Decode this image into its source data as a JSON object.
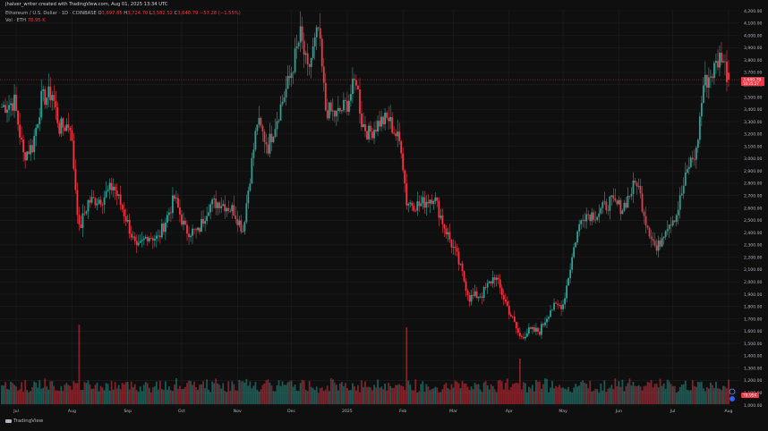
{
  "header": {
    "credit": "jhalver_writer created with TradingView.com, Aug 01, 2025 13:34 UTC",
    "symbol_title": "Ethereum / U.S. Dollar · 1D · COINBASE",
    "ohlc_label_o": "O",
    "ohlc_o": "3,697.85",
    "ohlc_label_h": "H",
    "ohlc_h": "3,724.70",
    "ohlc_label_l": "L",
    "ohlc_l": "3,582.52",
    "ohlc_label_c": "C",
    "ohlc_c": "3,640.79",
    "change": "−57.28 (−1.55%)",
    "vol_label": "Vol · ETH",
    "vol_value": "78.95 K"
  },
  "logo_text": "TradingView",
  "colors": {
    "up": "#26a69a",
    "down": "#f23645",
    "background": "#0f0f0f",
    "grid": "#1e1e1e",
    "text": "#b2b5be"
  },
  "chart_data": {
    "type": "candlestick",
    "x_ticks": [
      "Jul",
      "Aug",
      "Sep",
      "Oct",
      "Nov",
      "Dec",
      "2025",
      "Feb",
      "Mar",
      "Apr",
      "May",
      "Jun",
      "Jul",
      "Aug"
    ],
    "y_ticks": [
      "4,200.00",
      "4,100.00",
      "4,000.00",
      "3,900.00",
      "3,800.00",
      "3,700.00",
      "3,600.00",
      "3,500.00",
      "3,400.00",
      "3,300.00",
      "3,200.00",
      "3,100.00",
      "3,000.00",
      "2,900.00",
      "2,800.00",
      "2,700.00",
      "2,600.00",
      "2,500.00",
      "2,400.00",
      "2,300.00",
      "2,200.00",
      "2,100.00",
      "2,000.00",
      "1,900.00",
      "1,800.00",
      "1,700.00",
      "1,600.00",
      "1,500.00",
      "1,400.00",
      "1,300.00",
      "1,200.00",
      "1,100.00",
      "1,000.00"
    ],
    "ylim": [
      1000,
      4200
    ],
    "current_price_label": "3,640.79",
    "countdown_label": "10:25:27",
    "volume_label": "78.95K",
    "price_path": [
      [
        "2024-06-23",
        3420
      ],
      [
        "2024-06-30",
        3460
      ],
      [
        "2024-07-05",
        3030
      ],
      [
        "2024-07-10",
        3100
      ],
      [
        "2024-07-15",
        3480
      ],
      [
        "2024-07-21",
        3530
      ],
      [
        "2024-07-25",
        3250
      ],
      [
        "2024-07-31",
        3280
      ],
      [
        "2024-08-05",
        2420
      ],
      [
        "2024-08-10",
        2650
      ],
      [
        "2024-08-18",
        2680
      ],
      [
        "2024-08-24",
        2780
      ],
      [
        "2024-08-31",
        2520
      ],
      [
        "2024-09-06",
        2250
      ],
      [
        "2024-09-12",
        2380
      ],
      [
        "2024-09-18",
        2350
      ],
      [
        "2024-09-27",
        2680
      ],
      [
        "2024-10-03",
        2420
      ],
      [
        "2024-10-10",
        2400
      ],
      [
        "2024-10-16",
        2620
      ],
      [
        "2024-10-22",
        2650
      ],
      [
        "2024-10-30",
        2580
      ],
      [
        "2024-11-04",
        2420
      ],
      [
        "2024-11-12",
        3300
      ],
      [
        "2024-11-18",
        3100
      ],
      [
        "2024-11-24",
        3380
      ],
      [
        "2024-11-30",
        3650
      ],
      [
        "2024-12-06",
        4000
      ],
      [
        "2024-12-10",
        3700
      ],
      [
        "2024-12-16",
        4050
      ],
      [
        "2024-12-20",
        3400
      ],
      [
        "2024-12-26",
        3350
      ],
      [
        "2025-01-01",
        3450
      ],
      [
        "2025-01-06",
        3650
      ],
      [
        "2025-01-09",
        3300
      ],
      [
        "2025-01-13",
        3200
      ],
      [
        "2025-01-19",
        3300
      ],
      [
        "2025-01-24",
        3320
      ],
      [
        "2025-01-31",
        3100
      ],
      [
        "2025-02-03",
        2650
      ],
      [
        "2025-02-10",
        2620
      ],
      [
        "2025-02-18",
        2700
      ],
      [
        "2025-02-24",
        2450
      ],
      [
        "2025-03-03",
        2200
      ],
      [
        "2025-03-10",
        1870
      ],
      [
        "2025-03-17",
        1900
      ],
      [
        "2025-03-24",
        2050
      ],
      [
        "2025-03-31",
        1800
      ],
      [
        "2025-04-07",
        1550
      ],
      [
        "2025-04-12",
        1600
      ],
      [
        "2025-04-18",
        1600
      ],
      [
        "2025-04-24",
        1780
      ],
      [
        "2025-05-01",
        1820
      ],
      [
        "2025-05-08",
        2350
      ],
      [
        "2025-05-12",
        2550
      ],
      [
        "2025-05-20",
        2550
      ],
      [
        "2025-05-27",
        2650
      ],
      [
        "2025-06-03",
        2600
      ],
      [
        "2025-06-11",
        2820
      ],
      [
        "2025-06-16",
        2500
      ],
      [
        "2025-06-22",
        2250
      ],
      [
        "2025-06-27",
        2450
      ],
      [
        "2025-07-03",
        2550
      ],
      [
        "2025-07-10",
        2950
      ],
      [
        "2025-07-14",
        3050
      ],
      [
        "2025-07-18",
        3600
      ],
      [
        "2025-07-23",
        3700
      ],
      [
        "2025-07-28",
        3850
      ],
      [
        "2025-08-01",
        3640
      ]
    ],
    "volume_spikes": [
      [
        "2024-08-05",
        8.0
      ],
      [
        "2025-02-03",
        7.6
      ],
      [
        "2025-04-07",
        4.2
      ]
    ]
  }
}
